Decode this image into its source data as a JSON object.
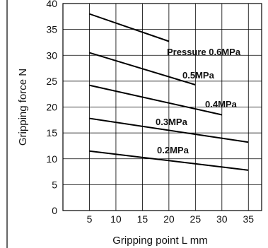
{
  "chart_data": {
    "type": "line",
    "xlabel": "Gripping point  L mm",
    "ylabel": "Gripping force  N",
    "xlim": [
      0,
      37.5
    ],
    "ylim": [
      0,
      40
    ],
    "x_ticks": [
      5,
      10,
      15,
      20,
      25,
      30,
      35
    ],
    "y_ticks": [
      0,
      5,
      10,
      15,
      20,
      25,
      30,
      35,
      40
    ],
    "grid": true,
    "series": [
      {
        "name": "Pressure 0.6MPa",
        "x": [
          5,
          20
        ],
        "y": [
          38,
          32.7
        ]
      },
      {
        "name": "0.5MPa",
        "x": [
          5,
          25
        ],
        "y": [
          30.5,
          24.3
        ]
      },
      {
        "name": "0.4MPa",
        "x": [
          5,
          30
        ],
        "y": [
          24.2,
          18.5
        ]
      },
      {
        "name": "0.3MPa",
        "x": [
          5,
          35
        ],
        "y": [
          17.8,
          13.2
        ]
      },
      {
        "name": "0.2MPa",
        "x": [
          5,
          35
        ],
        "y": [
          11.5,
          7.8
        ]
      }
    ]
  }
}
